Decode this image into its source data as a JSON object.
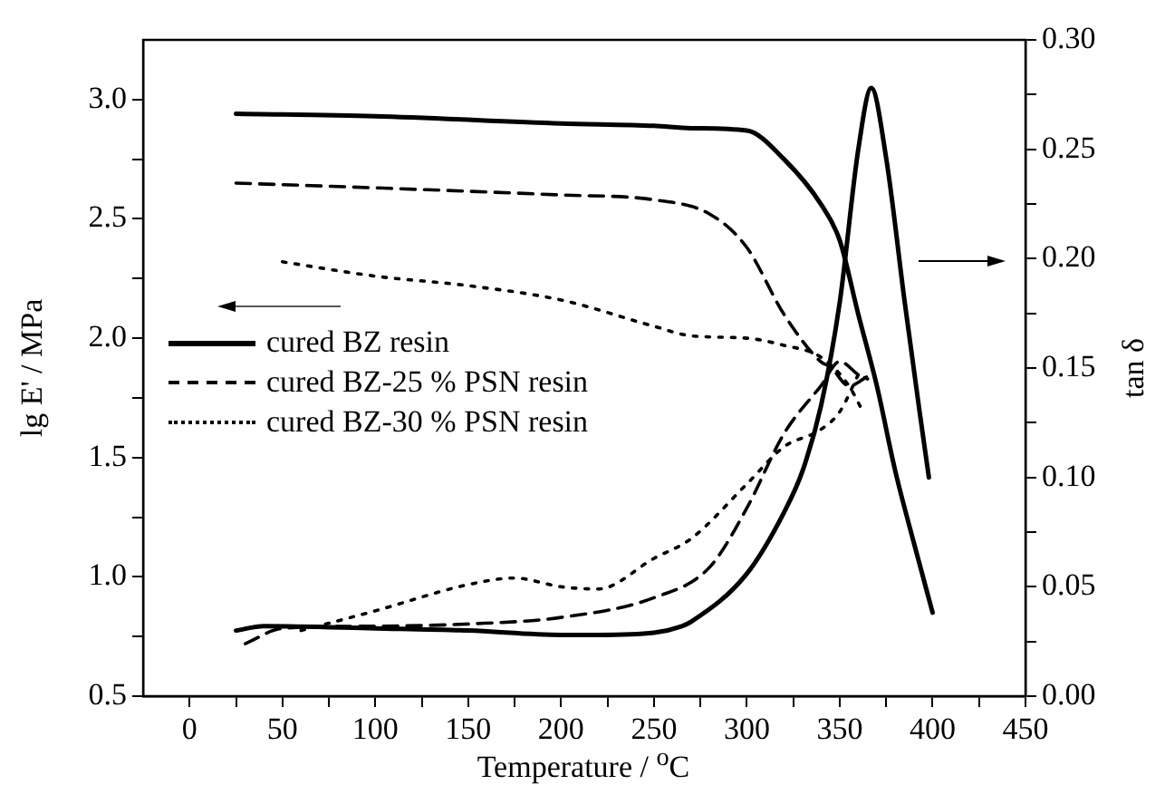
{
  "chart_data": {
    "type": "line",
    "xlabel": "Temperature / $^{o}$C",
    "ylabel": "lg E' / MPa",
    "y2label": "tan δ",
    "xlim": [
      -25,
      450
    ],
    "xticks": [
      0,
      {
        "value": 25,
        "label": null
      },
      50,
      {
        "value": 75,
        "label": null
      },
      100,
      {
        "value": 125,
        "label": null
      },
      150,
      {
        "value": 175,
        "label": null
      },
      200,
      {
        "value": 225,
        "label": null
      },
      250,
      {
        "value": 275,
        "label": null
      },
      300,
      {
        "value": 325,
        "label": null
      },
      350,
      {
        "value": 375,
        "label": null
      },
      400,
      {
        "value": 425,
        "label": null
      },
      450
    ],
    "ylim": [
      0.5,
      3.25
    ],
    "yticks": [
      {
        "value": 0.5,
        "label": "0.5"
      },
      {
        "value": 0.75,
        "label": null
      },
      {
        "value": 1.0,
        "label": "1.0"
      },
      {
        "value": 1.25,
        "label": null
      },
      {
        "value": 1.5,
        "label": "1.5"
      },
      {
        "value": 1.75,
        "label": null
      },
      {
        "value": 2.0,
        "label": "2.0"
      },
      {
        "value": 2.25,
        "label": null
      },
      {
        "value": 2.5,
        "label": "2.5"
      },
      {
        "value": 2.75,
        "label": null
      },
      {
        "value": 3.0,
        "label": "3.0"
      }
    ],
    "y2lim": [
      0,
      0.3
    ],
    "y2ticks": [
      {
        "value": 0,
        "label": "0.00"
      },
      {
        "value": 0.025,
        "label": null
      },
      {
        "value": 0.05,
        "label": "0.05"
      },
      {
        "value": 0.075,
        "label": null
      },
      {
        "value": 0.1,
        "label": "0.10"
      },
      {
        "value": 0.125,
        "label": null
      },
      {
        "value": 0.15,
        "label": "0.15"
      },
      {
        "value": 0.175,
        "label": null
      },
      {
        "value": 0.2,
        "label": "0.20"
      },
      {
        "value": 0.225,
        "label": null
      },
      {
        "value": 0.25,
        "label": "0.25"
      },
      {
        "value": 0.275,
        "label": null
      },
      {
        "value": 0.3,
        "label": "0.30"
      }
    ],
    "grid": false,
    "legend": "left",
    "marker": "none",
    "series": [
      {
        "name": "cured BZ resin",
        "color": "#000000",
        "line_style": "solid",
        "x": [
          25,
          100,
          200,
          250,
          270,
          300,
          320,
          340,
          350,
          360,
          370,
          380,
          390,
          400
        ],
        "values": [
          2.94,
          2.93,
          2.9,
          2.89,
          2.88,
          2.87,
          2.75,
          2.56,
          2.41,
          2.1,
          1.8,
          1.44,
          1.14,
          0.85
        ]
      },
      {
        "name": "cured BZ-25 % PSN resin",
        "color": "#000000",
        "line_style": "dashed",
        "x": [
          25,
          100,
          200,
          250,
          280,
          300,
          320,
          340,
          345,
          355,
          365
        ],
        "values": [
          2.65,
          2.63,
          2.6,
          2.58,
          2.52,
          2.38,
          2.1,
          1.9,
          1.88,
          1.8,
          1.84
        ]
      },
      {
        "name": "cured BZ-30 % PSN resin",
        "color": "#000000",
        "line_style": "dotted",
        "x": [
          50,
          100,
          150,
          200,
          250,
          270,
          300,
          320,
          340,
          355,
          362
        ],
        "values": [
          2.32,
          2.26,
          2.22,
          2.16,
          2.05,
          2.01,
          2.0,
          1.97,
          1.92,
          1.8,
          1.7
        ]
      },
      {
        "color": "#000000",
        "line_style": "solid",
        "axis": "y2",
        "x": [
          25,
          40,
          100,
          150,
          200,
          220,
          250,
          265,
          270,
          300,
          320,
          330,
          340,
          350,
          360,
          367,
          375,
          385,
          393,
          398
        ],
        "values": [
          0.03,
          0.032,
          0.031,
          0.03,
          0.028,
          0.028,
          0.029,
          0.032,
          0.034,
          0.056,
          0.084,
          0.103,
          0.133,
          0.18,
          0.25,
          0.278,
          0.246,
          0.18,
          0.13,
          0.1
        ]
      },
      {
        "color": "#000000",
        "line_style": "dashed",
        "axis": "y2",
        "x": [
          30,
          50,
          100,
          150,
          200,
          250,
          280,
          300,
          320,
          340,
          350,
          360,
          365
        ],
        "values": [
          0.024,
          0.031,
          0.032,
          0.033,
          0.036,
          0.045,
          0.059,
          0.086,
          0.12,
          0.142,
          0.153,
          0.147,
          0.145
        ]
      },
      {
        "color": "#000000",
        "line_style": "dotted",
        "axis": "y2",
        "x": [
          60,
          100,
          150,
          175,
          200,
          220,
          250,
          270,
          300,
          320,
          340,
          350,
          360
        ],
        "values": [
          0.03,
          0.039,
          0.051,
          0.054,
          0.05,
          0.049,
          0.063,
          0.072,
          0.097,
          0.114,
          0.122,
          0.13,
          0.147
        ]
      }
    ]
  }
}
